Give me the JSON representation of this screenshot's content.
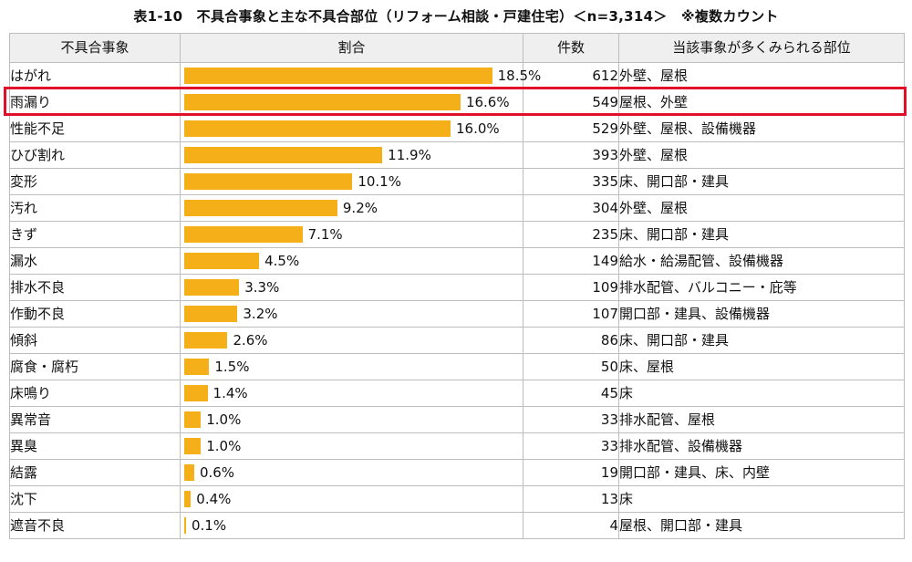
{
  "title": "表1-10　不具合事象と主な不具合部位（リフォーム相談・戸建住宅）＜n=3,314＞　※複数カウント",
  "table": {
    "headers": [
      "不具合事象",
      "割合",
      "件数",
      "当該事象が多くみられる部位"
    ]
  },
  "chart_data": {
    "type": "bar",
    "orientation": "horizontal",
    "title": "表1-10　不具合事象と主な不具合部位（リフォーム相談・戸建住宅）＜n=3,314＞　※複数カウント",
    "xlim": [
      0,
      20
    ],
    "bar_color": "#f5b019",
    "highlight_color": "#e0102a",
    "highlighted_row": 1,
    "rows": [
      {
        "category": "はがれ",
        "value": 18.5,
        "label": "18.5%",
        "count": "612",
        "parts": "外壁、屋根"
      },
      {
        "category": "雨漏り",
        "value": 16.6,
        "label": "16.6%",
        "count": "549",
        "parts": "屋根、外壁"
      },
      {
        "category": "性能不足",
        "value": 16.0,
        "label": "16.0%",
        "count": "529",
        "parts": "外壁、屋根、設備機器"
      },
      {
        "category": "ひび割れ",
        "value": 11.9,
        "label": "11.9%",
        "count": "393",
        "parts": "外壁、屋根"
      },
      {
        "category": "変形",
        "value": 10.1,
        "label": "10.1%",
        "count": "335",
        "parts": "床、開口部・建具"
      },
      {
        "category": "汚れ",
        "value": 9.2,
        "label": "9.2%",
        "count": "304",
        "parts": "外壁、屋根"
      },
      {
        "category": "きず",
        "value": 7.1,
        "label": "7.1%",
        "count": "235",
        "parts": "床、開口部・建具"
      },
      {
        "category": "漏水",
        "value": 4.5,
        "label": "4.5%",
        "count": "149",
        "parts": "給水・給湯配管、設備機器"
      },
      {
        "category": "排水不良",
        "value": 3.3,
        "label": "3.3%",
        "count": "109",
        "parts": "排水配管、バルコニー・庇等"
      },
      {
        "category": "作動不良",
        "value": 3.2,
        "label": "3.2%",
        "count": "107",
        "parts": "開口部・建具、設備機器"
      },
      {
        "category": "傾斜",
        "value": 2.6,
        "label": "2.6%",
        "count": "86",
        "parts": "床、開口部・建具"
      },
      {
        "category": "腐食・腐朽",
        "value": 1.5,
        "label": "1.5%",
        "count": "50",
        "parts": "床、屋根"
      },
      {
        "category": "床鳴り",
        "value": 1.4,
        "label": "1.4%",
        "count": "45",
        "parts": "床"
      },
      {
        "category": "異常音",
        "value": 1.0,
        "label": "1.0%",
        "count": "33",
        "parts": "排水配管、屋根"
      },
      {
        "category": "異臭",
        "value": 1.0,
        "label": "1.0%",
        "count": "33",
        "parts": "排水配管、設備機器"
      },
      {
        "category": "結露",
        "value": 0.6,
        "label": "0.6%",
        "count": "19",
        "parts": "開口部・建具、床、内壁"
      },
      {
        "category": "沈下",
        "value": 0.4,
        "label": "0.4%",
        "count": "13",
        "parts": "床"
      },
      {
        "category": "遮音不良",
        "value": 0.1,
        "label": "0.1%",
        "count": "4",
        "parts": "屋根、開口部・建具"
      }
    ]
  }
}
